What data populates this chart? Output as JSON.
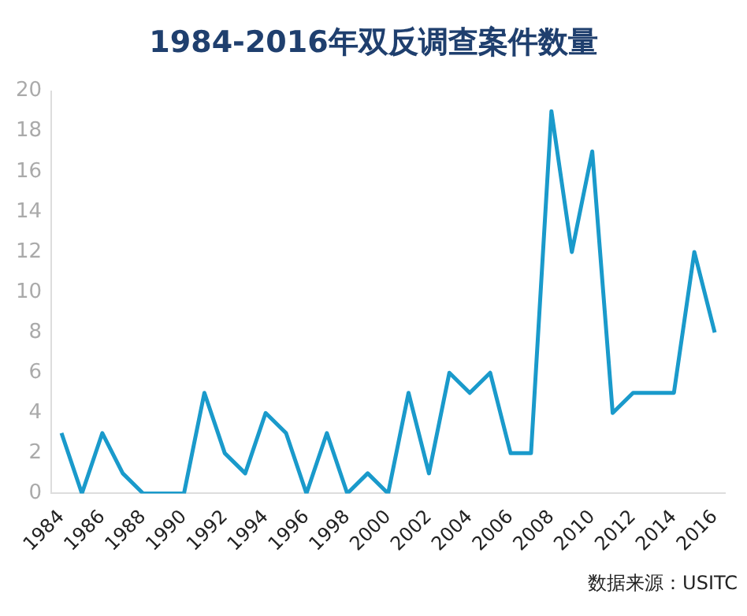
{
  "chart_data": {
    "type": "line",
    "title": "1984-2016年双反调查案件数量",
    "categories": [
      "1984",
      null,
      "1986",
      null,
      "1988",
      null,
      "1990",
      null,
      "1992",
      null,
      "1994",
      null,
      "1996",
      null,
      "1998",
      null,
      "2000",
      null,
      "2002",
      null,
      "2004",
      null,
      "2006",
      null,
      "2008",
      null,
      "2010",
      null,
      "2012",
      null,
      "2014",
      null,
      "2016"
    ],
    "series": [
      {
        "color": "#1a9acb",
        "values": [
          3,
          0,
          3,
          1,
          0,
          0,
          0,
          5,
          2,
          1,
          4,
          3,
          0,
          3,
          0,
          1,
          0,
          5,
          1,
          6,
          5,
          6,
          2,
          2,
          19,
          12,
          17,
          4,
          5,
          5,
          5,
          12,
          8
        ]
      }
    ],
    "ylim": [
      0,
      20
    ],
    "yticks": [
      0,
      2,
      4,
      6,
      8,
      10,
      12,
      14,
      16,
      18,
      20
    ],
    "grid": false,
    "legend": false,
    "marker": "none",
    "line_style": "solid",
    "annotations": [
      "数据来源：USITC"
    ]
  }
}
